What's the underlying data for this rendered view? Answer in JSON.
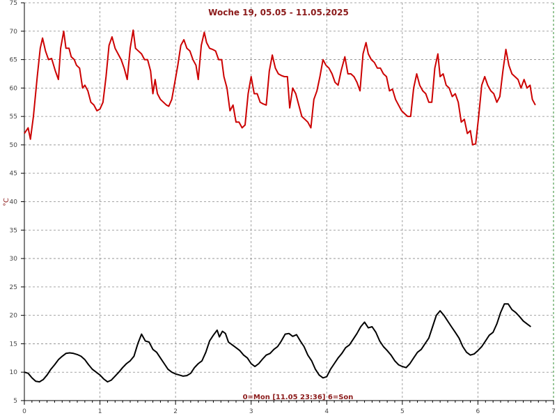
{
  "chart_data": {
    "type": "line",
    "title": "Woche 19, 05.05 - 11.05.2025",
    "ylabel": "°C",
    "xlabel": "",
    "annotation": "0=Mon [11.05 23:36] 6=Son",
    "xlim": [
      0,
      7
    ],
    "ylim": [
      5,
      75
    ],
    "x_ticks": [
      "0",
      "1",
      "2",
      "3",
      "4",
      "5",
      "6",
      "7"
    ],
    "y_ticks": [
      "5",
      "10",
      "15",
      "20",
      "25",
      "30",
      "35",
      "40",
      "45",
      "50",
      "55",
      "60",
      "65",
      "70",
      "75"
    ],
    "grid": true,
    "legend": "none",
    "colors": {
      "series_high": "#cc0000",
      "series_low": "#000000",
      "grid": "#888888",
      "end_grid": "#2e8b2e",
      "text": "#8b1a1a"
    },
    "series": [
      {
        "color": "#cc0000",
        "points": [
          [
            0.0,
            52.0
          ],
          [
            0.05,
            53.0
          ],
          [
            0.08,
            51.0
          ],
          [
            0.12,
            55.0
          ],
          [
            0.17,
            62.0
          ],
          [
            0.21,
            67.0
          ],
          [
            0.24,
            68.8
          ],
          [
            0.28,
            66.5
          ],
          [
            0.32,
            65.0
          ],
          [
            0.36,
            65.2
          ],
          [
            0.41,
            63.0
          ],
          [
            0.45,
            61.5
          ],
          [
            0.48,
            67.0
          ],
          [
            0.52,
            70.0
          ],
          [
            0.55,
            67.0
          ],
          [
            0.59,
            67.0
          ],
          [
            0.62,
            65.5
          ],
          [
            0.66,
            65.0
          ],
          [
            0.69,
            64.0
          ],
          [
            0.73,
            63.5
          ],
          [
            0.77,
            60.0
          ],
          [
            0.8,
            60.5
          ],
          [
            0.84,
            59.5
          ],
          [
            0.88,
            57.5
          ],
          [
            0.92,
            57.0
          ],
          [
            0.96,
            56.0
          ],
          [
            1.0,
            56.3
          ],
          [
            1.04,
            57.5
          ],
          [
            1.08,
            62.0
          ],
          [
            1.12,
            67.5
          ],
          [
            1.16,
            69.0
          ],
          [
            1.2,
            67.0
          ],
          [
            1.24,
            66.0
          ],
          [
            1.28,
            65.0
          ],
          [
            1.32,
            63.5
          ],
          [
            1.36,
            61.5
          ],
          [
            1.4,
            67.0
          ],
          [
            1.44,
            70.2
          ],
          [
            1.47,
            67.0
          ],
          [
            1.51,
            66.5
          ],
          [
            1.55,
            66.0
          ],
          [
            1.59,
            65.0
          ],
          [
            1.63,
            65.0
          ],
          [
            1.67,
            63.0
          ],
          [
            1.7,
            59.0
          ],
          [
            1.73,
            61.5
          ],
          [
            1.76,
            59.0
          ],
          [
            1.8,
            58.0
          ],
          [
            1.84,
            57.5
          ],
          [
            1.88,
            57.0
          ],
          [
            1.91,
            56.8
          ],
          [
            1.95,
            58.0
          ],
          [
            1.99,
            61.0
          ],
          [
            2.03,
            64.0
          ],
          [
            2.07,
            67.5
          ],
          [
            2.11,
            68.5
          ],
          [
            2.15,
            67.0
          ],
          [
            2.19,
            66.5
          ],
          [
            2.23,
            65.0
          ],
          [
            2.27,
            64.0
          ],
          [
            2.3,
            61.5
          ],
          [
            2.34,
            67.5
          ],
          [
            2.38,
            69.8
          ],
          [
            2.41,
            68.0
          ],
          [
            2.45,
            67.0
          ],
          [
            2.49,
            66.8
          ],
          [
            2.53,
            66.5
          ],
          [
            2.57,
            65.0
          ],
          [
            2.61,
            65.0
          ],
          [
            2.64,
            62.0
          ],
          [
            2.68,
            60.0
          ],
          [
            2.72,
            56.0
          ],
          [
            2.76,
            57.0
          ],
          [
            2.8,
            54.0
          ],
          [
            2.84,
            54.0
          ],
          [
            2.88,
            53.0
          ],
          [
            2.92,
            53.5
          ],
          [
            2.96,
            59.0
          ],
          [
            3.0,
            62.0
          ],
          [
            3.04,
            59.0
          ],
          [
            3.08,
            59.0
          ],
          [
            3.12,
            57.5
          ],
          [
            3.16,
            57.2
          ],
          [
            3.2,
            57.0
          ],
          [
            3.24,
            63.0
          ],
          [
            3.28,
            65.8
          ],
          [
            3.32,
            63.5
          ],
          [
            3.36,
            62.5
          ],
          [
            3.4,
            62.2
          ],
          [
            3.44,
            62.0
          ],
          [
            3.48,
            62.0
          ],
          [
            3.51,
            56.5
          ],
          [
            3.55,
            60.0
          ],
          [
            3.59,
            59.0
          ],
          [
            3.63,
            57.0
          ],
          [
            3.67,
            55.0
          ],
          [
            3.71,
            54.5
          ],
          [
            3.75,
            54.0
          ],
          [
            3.79,
            53.0
          ],
          [
            3.83,
            58.0
          ],
          [
            3.87,
            59.5
          ],
          [
            3.91,
            62.0
          ],
          [
            3.95,
            65.0
          ],
          [
            3.99,
            64.0
          ],
          [
            4.03,
            63.5
          ],
          [
            4.07,
            62.5
          ],
          [
            4.11,
            61.0
          ],
          [
            4.15,
            60.5
          ],
          [
            4.19,
            63.0
          ],
          [
            4.24,
            65.5
          ],
          [
            4.28,
            62.5
          ],
          [
            4.32,
            62.5
          ],
          [
            4.36,
            62.0
          ],
          [
            4.4,
            61.0
          ],
          [
            4.44,
            59.5
          ],
          [
            4.48,
            66.0
          ],
          [
            4.52,
            68.0
          ],
          [
            4.55,
            66.0
          ],
          [
            4.59,
            65.0
          ],
          [
            4.63,
            64.5
          ],
          [
            4.67,
            63.5
          ],
          [
            4.71,
            63.5
          ],
          [
            4.75,
            62.5
          ],
          [
            4.79,
            62.0
          ],
          [
            4.83,
            59.5
          ],
          [
            4.87,
            59.8
          ],
          [
            4.91,
            58.0
          ],
          [
            4.95,
            57.0
          ],
          [
            4.99,
            56.0
          ],
          [
            5.03,
            55.5
          ],
          [
            5.07,
            55.0
          ],
          [
            5.11,
            55.0
          ],
          [
            5.15,
            60.0
          ],
          [
            5.19,
            62.5
          ],
          [
            5.23,
            60.5
          ],
          [
            5.27,
            59.5
          ],
          [
            5.31,
            59.0
          ],
          [
            5.35,
            57.5
          ],
          [
            5.39,
            57.5
          ],
          [
            5.43,
            63.5
          ],
          [
            5.47,
            66.0
          ],
          [
            5.5,
            62.0
          ],
          [
            5.54,
            62.5
          ],
          [
            5.58,
            60.5
          ],
          [
            5.62,
            60.0
          ],
          [
            5.66,
            58.5
          ],
          [
            5.7,
            59.0
          ],
          [
            5.74,
            57.5
          ],
          [
            5.78,
            54.0
          ],
          [
            5.82,
            54.5
          ],
          [
            5.86,
            52.0
          ],
          [
            5.9,
            52.5
          ],
          [
            5.93,
            50.0
          ],
          [
            5.97,
            50.2
          ],
          [
            6.01,
            55.0
          ],
          [
            6.05,
            60.5
          ],
          [
            6.09,
            62.0
          ],
          [
            6.13,
            60.5
          ],
          [
            6.17,
            59.5
          ],
          [
            6.21,
            59.0
          ],
          [
            6.25,
            57.5
          ],
          [
            6.29,
            58.5
          ],
          [
            6.33,
            63.0
          ],
          [
            6.37,
            66.8
          ],
          [
            6.41,
            64.0
          ],
          [
            6.45,
            62.5
          ],
          [
            6.49,
            62.0
          ],
          [
            6.53,
            61.5
          ],
          [
            6.57,
            60.0
          ],
          [
            6.61,
            61.5
          ],
          [
            6.65,
            60.0
          ],
          [
            6.69,
            60.5
          ],
          [
            6.72,
            58.0
          ],
          [
            6.76,
            57.0
          ]
        ]
      },
      {
        "color": "#000000",
        "points": [
          [
            0.0,
            10.0
          ],
          [
            0.05,
            9.8
          ],
          [
            0.1,
            9.0
          ],
          [
            0.15,
            8.4
          ],
          [
            0.2,
            8.3
          ],
          [
            0.25,
            8.7
          ],
          [
            0.3,
            9.5
          ],
          [
            0.35,
            10.5
          ],
          [
            0.4,
            11.3
          ],
          [
            0.45,
            12.2
          ],
          [
            0.5,
            12.8
          ],
          [
            0.55,
            13.3
          ],
          [
            0.6,
            13.4
          ],
          [
            0.65,
            13.3
          ],
          [
            0.7,
            13.1
          ],
          [
            0.75,
            12.8
          ],
          [
            0.8,
            12.2
          ],
          [
            0.85,
            11.3
          ],
          [
            0.9,
            10.5
          ],
          [
            0.95,
            10.0
          ],
          [
            1.0,
            9.5
          ],
          [
            1.05,
            8.8
          ],
          [
            1.1,
            8.3
          ],
          [
            1.15,
            8.6
          ],
          [
            1.2,
            9.3
          ],
          [
            1.25,
            10.0
          ],
          [
            1.3,
            10.8
          ],
          [
            1.35,
            11.5
          ],
          [
            1.4,
            12.0
          ],
          [
            1.45,
            12.8
          ],
          [
            1.5,
            15.0
          ],
          [
            1.55,
            16.7
          ],
          [
            1.6,
            15.5
          ],
          [
            1.65,
            15.3
          ],
          [
            1.7,
            14.0
          ],
          [
            1.75,
            13.5
          ],
          [
            1.8,
            12.5
          ],
          [
            1.85,
            11.5
          ],
          [
            1.9,
            10.5
          ],
          [
            1.95,
            10.0
          ],
          [
            2.0,
            9.7
          ],
          [
            2.05,
            9.5
          ],
          [
            2.1,
            9.3
          ],
          [
            2.15,
            9.4
          ],
          [
            2.2,
            9.8
          ],
          [
            2.25,
            10.8
          ],
          [
            2.3,
            11.5
          ],
          [
            2.35,
            12.0
          ],
          [
            2.4,
            13.5
          ],
          [
            2.45,
            15.5
          ],
          [
            2.5,
            16.5
          ],
          [
            2.55,
            17.4
          ],
          [
            2.58,
            16.2
          ],
          [
            2.62,
            17.2
          ],
          [
            2.66,
            16.8
          ],
          [
            2.7,
            15.3
          ],
          [
            2.75,
            14.8
          ],
          [
            2.8,
            14.3
          ],
          [
            2.85,
            13.8
          ],
          [
            2.9,
            13.0
          ],
          [
            2.95,
            12.5
          ],
          [
            3.0,
            11.5
          ],
          [
            3.05,
            11.0
          ],
          [
            3.1,
            11.5
          ],
          [
            3.15,
            12.3
          ],
          [
            3.2,
            13.0
          ],
          [
            3.25,
            13.3
          ],
          [
            3.3,
            14.0
          ],
          [
            3.35,
            14.5
          ],
          [
            3.4,
            15.5
          ],
          [
            3.45,
            16.7
          ],
          [
            3.5,
            16.8
          ],
          [
            3.55,
            16.3
          ],
          [
            3.6,
            16.6
          ],
          [
            3.65,
            15.5
          ],
          [
            3.7,
            14.5
          ],
          [
            3.75,
            13.0
          ],
          [
            3.8,
            12.0
          ],
          [
            3.85,
            10.5
          ],
          [
            3.9,
            9.5
          ],
          [
            3.95,
            9.0
          ],
          [
            4.0,
            9.2
          ],
          [
            4.05,
            10.5
          ],
          [
            4.1,
            11.5
          ],
          [
            4.15,
            12.5
          ],
          [
            4.2,
            13.3
          ],
          [
            4.25,
            14.3
          ],
          [
            4.3,
            14.8
          ],
          [
            4.35,
            15.8
          ],
          [
            4.4,
            16.8
          ],
          [
            4.45,
            18.0
          ],
          [
            4.5,
            18.8
          ],
          [
            4.55,
            17.8
          ],
          [
            4.6,
            18.0
          ],
          [
            4.65,
            17.0
          ],
          [
            4.7,
            15.5
          ],
          [
            4.75,
            14.5
          ],
          [
            4.8,
            13.8
          ],
          [
            4.85,
            13.0
          ],
          [
            4.9,
            12.0
          ],
          [
            4.95,
            11.3
          ],
          [
            5.0,
            11.0
          ],
          [
            5.05,
            10.8
          ],
          [
            5.1,
            11.5
          ],
          [
            5.15,
            12.5
          ],
          [
            5.2,
            13.5
          ],
          [
            5.25,
            14.0
          ],
          [
            5.3,
            15.0
          ],
          [
            5.35,
            16.0
          ],
          [
            5.4,
            18.0
          ],
          [
            5.45,
            20.0
          ],
          [
            5.5,
            20.8
          ],
          [
            5.55,
            20.0
          ],
          [
            5.6,
            19.0
          ],
          [
            5.65,
            18.0
          ],
          [
            5.7,
            17.0
          ],
          [
            5.75,
            16.0
          ],
          [
            5.8,
            14.5
          ],
          [
            5.85,
            13.5
          ],
          [
            5.9,
            13.0
          ],
          [
            5.95,
            13.2
          ],
          [
            6.0,
            13.8
          ],
          [
            6.05,
            14.5
          ],
          [
            6.1,
            15.5
          ],
          [
            6.15,
            16.5
          ],
          [
            6.2,
            17.0
          ],
          [
            6.25,
            18.5
          ],
          [
            6.3,
            20.5
          ],
          [
            6.35,
            22.0
          ],
          [
            6.4,
            22.0
          ],
          [
            6.45,
            21.0
          ],
          [
            6.5,
            20.5
          ],
          [
            6.55,
            19.8
          ],
          [
            6.6,
            19.0
          ],
          [
            6.65,
            18.5
          ],
          [
            6.7,
            18.0
          ]
        ]
      }
    ]
  }
}
